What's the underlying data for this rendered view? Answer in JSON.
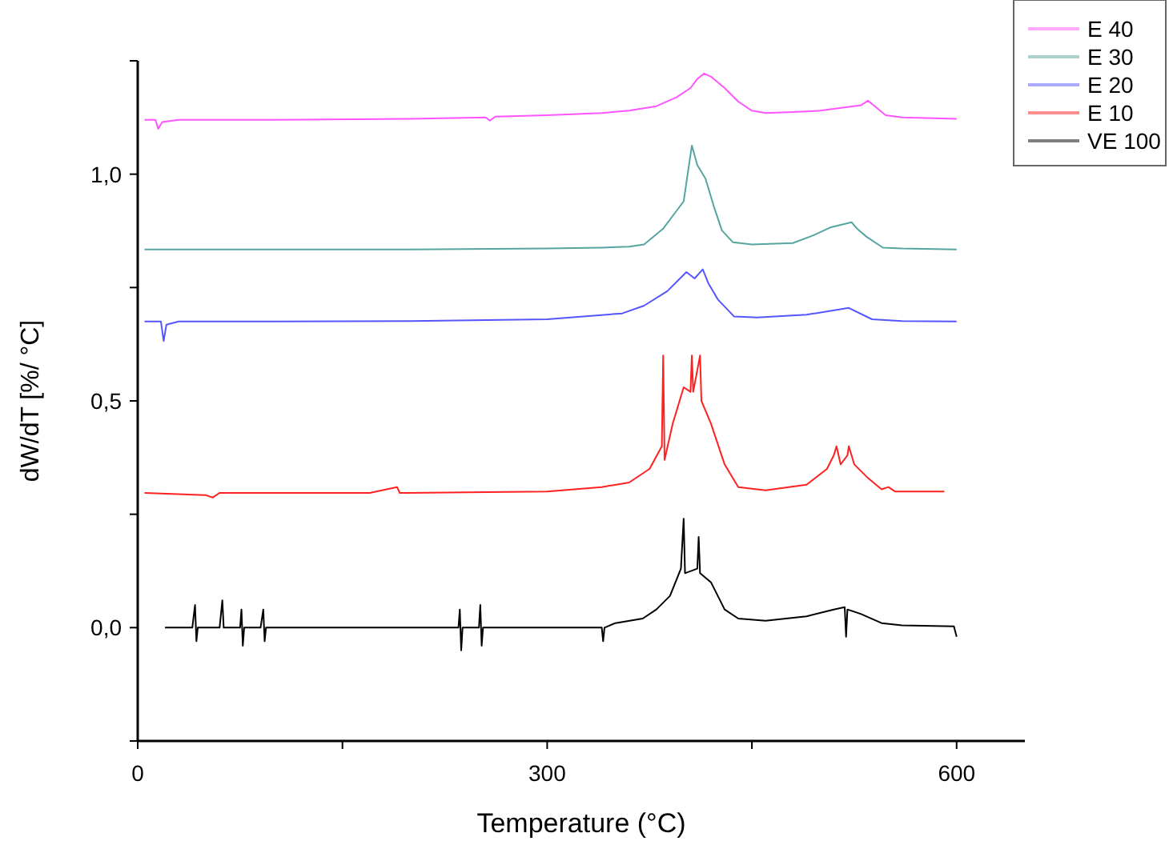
{
  "chart_data": {
    "type": "line",
    "xlabel": "Temperature (°C)",
    "ylabel": "dW/dT [%/ °C]",
    "xlim": [
      0,
      650
    ],
    "xticks": [
      0,
      {
        "value": 150,
        "label": null
      },
      300,
      {
        "value": 450,
        "label": null
      },
      600
    ],
    "ylim": [
      -0.25,
      1.25
    ],
    "yticks": [
      {
        "value": -0.25,
        "label": null
      },
      {
        "value": 0,
        "label": "0,0"
      },
      {
        "value": 0.25,
        "label": null
      },
      {
        "value": 0.5,
        "label": "0,5"
      },
      {
        "value": 0.75,
        "label": null
      },
      {
        "value": 1,
        "label": "1,0"
      },
      {
        "value": 1.25,
        "label": null
      }
    ],
    "grid": false,
    "legend": "top right",
    "marker": "none",
    "line_style": "solid",
    "series": [
      {
        "name": "E 40",
        "color": "#ff55ff",
        "x": [
          5,
          13,
          15,
          18,
          30,
          100,
          200,
          255,
          258,
          262,
          300,
          340,
          360,
          380,
          395,
          405,
          410,
          415,
          420,
          430,
          440,
          450,
          460,
          480,
          500,
          520,
          530,
          535,
          540,
          548,
          560,
          600
        ],
        "values": [
          1.12,
          1.12,
          1.1,
          1.115,
          1.12,
          1.12,
          1.122,
          1.125,
          1.118,
          1.127,
          1.13,
          1.135,
          1.14,
          1.15,
          1.17,
          1.19,
          1.21,
          1.222,
          1.215,
          1.19,
          1.16,
          1.14,
          1.135,
          1.137,
          1.14,
          1.148,
          1.152,
          1.162,
          1.15,
          1.13,
          1.125,
          1.122
        ]
      },
      {
        "name": "E 30",
        "color": "#55a5a0",
        "x": [
          5,
          100,
          200,
          300,
          340,
          360,
          371,
          385,
          395,
          400,
          406,
          410,
          416,
          422,
          428,
          436,
          450,
          480,
          495,
          508,
          523,
          527,
          534,
          546,
          560,
          600
        ],
        "values": [
          0.834,
          0.834,
          0.834,
          0.836,
          0.838,
          0.84,
          0.845,
          0.88,
          0.92,
          0.94,
          1.063,
          1.02,
          0.99,
          0.93,
          0.876,
          0.85,
          0.845,
          0.848,
          0.865,
          0.883,
          0.894,
          0.88,
          0.862,
          0.838,
          0.836,
          0.834
        ]
      },
      {
        "name": "E 20",
        "color": "#5555ff",
        "x": [
          5,
          17,
          19,
          21,
          30,
          100,
          200,
          300,
          355,
          371,
          388,
          402,
          408,
          414,
          418,
          425,
          437,
          454,
          490,
          521,
          538,
          560,
          600
        ],
        "values": [
          0.675,
          0.675,
          0.632,
          0.668,
          0.675,
          0.675,
          0.676,
          0.68,
          0.693,
          0.71,
          0.742,
          0.784,
          0.77,
          0.79,
          0.76,
          0.724,
          0.686,
          0.684,
          0.69,
          0.705,
          0.68,
          0.676,
          0.675
        ]
      },
      {
        "name": "E 10",
        "color": "#ff2020",
        "x": [
          5,
          50,
          55,
          60,
          170,
          190,
          192,
          195,
          300,
          340,
          360,
          375,
          384,
          385,
          386,
          392,
          400,
          405,
          406,
          407,
          412,
          413,
          420,
          430,
          440,
          460,
          490,
          505,
          510,
          512,
          515,
          520,
          521,
          525,
          535,
          545,
          550,
          555,
          591
        ],
        "values": [
          0.297,
          0.292,
          0.287,
          0.297,
          0.297,
          0.31,
          0.297,
          0.297,
          0.3,
          0.31,
          0.32,
          0.35,
          0.4,
          0.6,
          0.37,
          0.45,
          0.53,
          0.52,
          0.6,
          0.52,
          0.6,
          0.5,
          0.45,
          0.36,
          0.31,
          0.303,
          0.315,
          0.35,
          0.38,
          0.4,
          0.36,
          0.38,
          0.4,
          0.36,
          0.33,
          0.305,
          0.31,
          0.3,
          0.3
        ]
      },
      {
        "name": "VE 100",
        "color": "#000000",
        "x": [
          20,
          40,
          42,
          43,
          44,
          60,
          62,
          63,
          75,
          76,
          77,
          78,
          90,
          92,
          93,
          94,
          200,
          235,
          236,
          237,
          238,
          250,
          251,
          252,
          253,
          340,
          341,
          342,
          350,
          370,
          380,
          390,
          398,
          400,
          401,
          410,
          411,
          412,
          420,
          430,
          440,
          460,
          490,
          510,
          518,
          519,
          520,
          530,
          545,
          560,
          598,
          600
        ],
        "values": [
          0,
          0,
          0.05,
          -0.03,
          0,
          0,
          0.06,
          0,
          0,
          0.04,
          -0.04,
          0,
          0,
          0.04,
          -0.03,
          0,
          0,
          0,
          0.04,
          -0.05,
          0,
          0,
          0.05,
          -0.04,
          0,
          0,
          -0.03,
          0,
          0.01,
          0.02,
          0.04,
          0.07,
          0.13,
          0.24,
          0.12,
          0.13,
          0.2,
          0.12,
          0.1,
          0.04,
          0.02,
          0.015,
          0.025,
          0.04,
          0.045,
          -0.02,
          0.04,
          0.03,
          0.01,
          0.005,
          0.003,
          -0.02
        ]
      }
    ]
  }
}
